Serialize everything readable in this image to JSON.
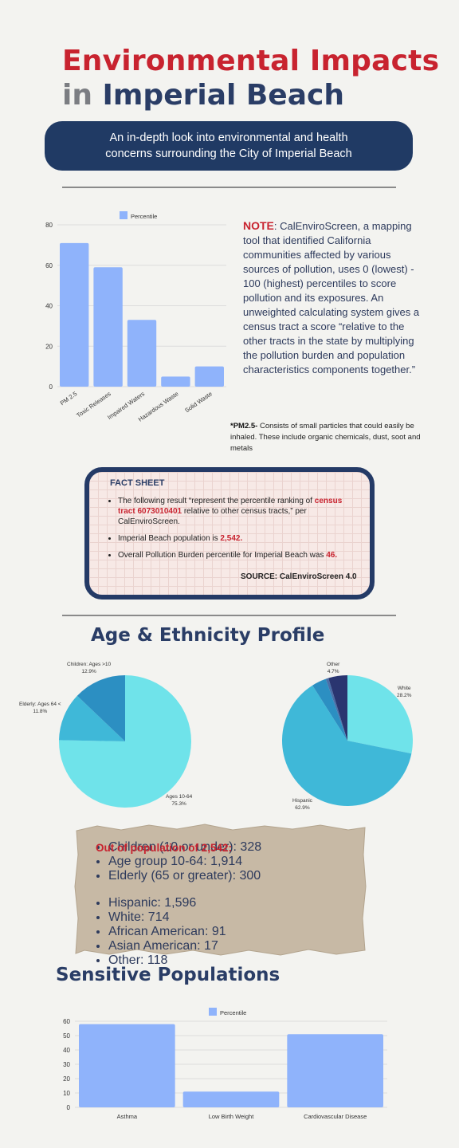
{
  "header": {
    "title_line1": "Environmental Impacts",
    "title_in": "in",
    "title_line2": "Imperial Beach",
    "subtitle": "An in-depth look into environmental and health concerns surrounding the City of Imperial Beach"
  },
  "note": {
    "label": "NOTE",
    "text": ": CalEnviroScreen, a mapping tool that identified California communities affected by various sources of pollution, uses 0 (lowest) - 100 (highest) percentiles to score pollution and its exposures. An unweighted calculating system gives a census tract a score “relative to the other tracts in the state by multiplying the pollution burden and population characteristics components together.”"
  },
  "pm_note": {
    "label": "*PM2.5-",
    "text": " Consists of small particles that could easily be inhaled. These include organic chemicals, dust, soot and metals"
  },
  "fact_sheet": {
    "title": "FACT SHEET",
    "item1_pre": "The following result “represent the percentile ranking of ",
    "item1_tract": "census tract 6073010401",
    "item1_post": " relative to other census tracts,” per CalEnviroScreen.",
    "item2_pre": "Imperial Beach population is ",
    "item2_value": "2,542.",
    "item3_pre": "Overall Pollution Burden percentile for Imperial Beach was ",
    "item3_value": "46.",
    "source": "SOURCE: CalEnviroScreen 4.0"
  },
  "age_section_title": "Age & Ethnicity Profile",
  "population": {
    "title": "Out of population of 2,542:",
    "age_items": [
      "Children (10 or under): 328",
      "Age group 10-64: 1,914",
      "Elderly (65 or greater): 300"
    ],
    "ethnicity_items": [
      "Hispanic: 1,596",
      "White: 714",
      "African American: 91",
      "Asian American: 17",
      "Other: 118"
    ]
  },
  "sensitive_title": "Sensitive Populations",
  "colors": {
    "bar": "#8fb3fb",
    "pie_main": "#6fe3ea",
    "pie_second": "#3fb8d8",
    "pie_third": "#2c8fc2",
    "pie_dark": "#2a3570",
    "accent_red": "#c8232f",
    "navy": "#203a64"
  },
  "chart_data": [
    {
      "type": "bar",
      "legend": "Percentile",
      "categories": [
        "PM 2.5",
        "Toxic Releases",
        "Impaired Waters",
        "Hazardous Waste",
        "Solid Waste"
      ],
      "values": [
        71,
        59,
        33,
        5,
        10
      ],
      "ylim": [
        0,
        80
      ],
      "yticks": [
        "0",
        "20",
        "40",
        "60",
        "80"
      ],
      "grid": true,
      "legend_position": "top"
    },
    {
      "type": "pie",
      "labels": [
        {
          "name": "Ages 10-64",
          "pct": "75.3%"
        },
        {
          "name": "Elderly: Ages 64 <",
          "pct": "11.8%"
        },
        {
          "name": "Children: Ages >10",
          "pct": "12.9%"
        }
      ],
      "values": [
        75.3,
        11.8,
        12.9
      ]
    },
    {
      "type": "pie",
      "labels": [
        {
          "name": "White",
          "pct": "28.2%"
        },
        {
          "name": "Hispanic",
          "pct": "62.9%"
        },
        {
          "name": "",
          "pct": ""
        },
        {
          "name": "",
          "pct": ""
        },
        {
          "name": "Other",
          "pct": "4.7%"
        }
      ],
      "values": [
        28.2,
        62.9,
        3.6,
        0.7,
        4.7
      ]
    },
    {
      "type": "bar",
      "legend": "Percentile",
      "categories": [
        "Asthma",
        "Low Birth Weight",
        "Cardiovascular Disease"
      ],
      "values": [
        58,
        11,
        51
      ],
      "ylim": [
        0,
        60
      ],
      "yticks": [
        "0",
        "10",
        "20",
        "30",
        "40",
        "50",
        "60"
      ],
      "grid": true,
      "legend_position": "top"
    }
  ]
}
